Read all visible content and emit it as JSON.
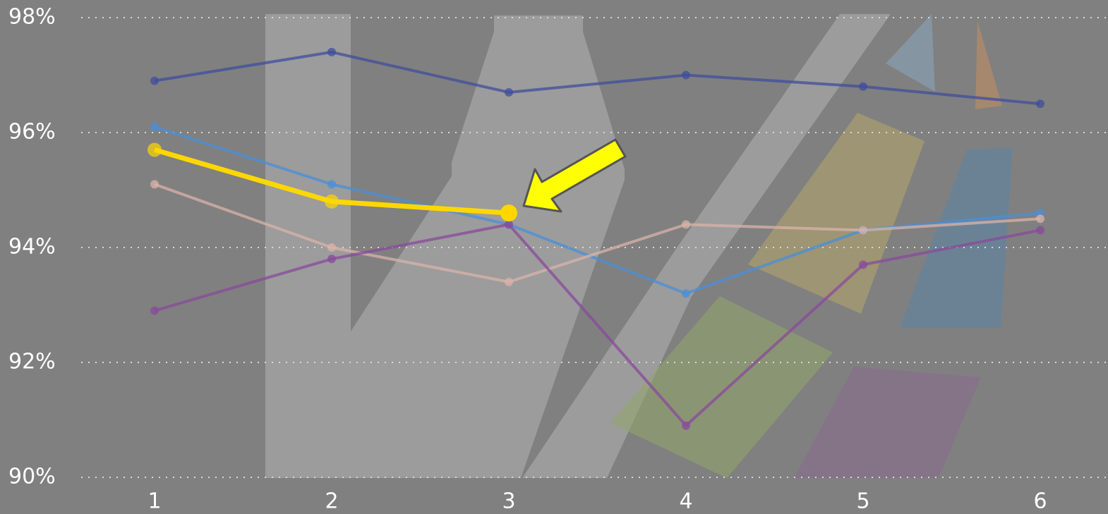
{
  "chart_data": {
    "type": "line",
    "categories": [
      "1",
      "2",
      "3",
      "4",
      "5",
      "6"
    ],
    "ylim": [
      90,
      98
    ],
    "yticks": [
      {
        "value": 90,
        "label": "90%"
      },
      {
        "value": 92,
        "label": "92%"
      },
      {
        "value": 94,
        "label": "94%"
      },
      {
        "value": 96,
        "label": "96%"
      },
      {
        "value": 98,
        "label": "98%"
      }
    ],
    "grid": true,
    "series": [
      {
        "color": "#3f4d9e",
        "values": [
          96.9,
          97.4,
          96.7,
          97.0,
          96.8,
          96.5
        ]
      },
      {
        "color": "#4a8fd8",
        "values": [
          96.1,
          95.1,
          94.4,
          93.2,
          94.3,
          94.6
        ]
      },
      {
        "color": "#d9b3aa",
        "values": [
          95.1,
          94.0,
          93.4,
          94.4,
          94.3,
          94.5
        ]
      },
      {
        "color": "#8a4a9c",
        "values": [
          92.9,
          93.8,
          94.4,
          90.9,
          93.7,
          94.3
        ]
      },
      {
        "color": "#ffd700",
        "values": [
          95.7,
          94.8,
          94.6,
          null,
          null,
          null
        ]
      }
    ]
  }
}
